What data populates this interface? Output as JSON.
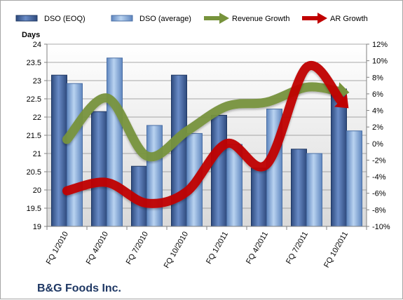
{
  "chart_data": {
    "type": "bar",
    "company": "B&G Foods Inc.",
    "ylabel_left": "Days",
    "categories": [
      "FQ 1/2010",
      "FQ 4/2010",
      "FQ 7/2010",
      "FQ 10/2010",
      "FQ 1/2011",
      "FQ 4/2011",
      "FQ 7/2011",
      "FQ 10/2011"
    ],
    "ylim_left": [
      19,
      24
    ],
    "yticks_left": [
      "19",
      "19.5",
      "20",
      "20.5",
      "21",
      "21.5",
      "22",
      "22.5",
      "23",
      "23.5",
      "24"
    ],
    "ylim_right": [
      -0.1,
      0.12
    ],
    "yticks_right": [
      "-10%",
      "-8%",
      "-6%",
      "-4%",
      "-2%",
      "0%",
      "2%",
      "4%",
      "6%",
      "8%",
      "10%",
      "12%"
    ],
    "legend_position": "top",
    "grid": true,
    "series": [
      {
        "name": "DSO (EOQ)",
        "type": "bar",
        "axis": "left",
        "color": "#4f6fa8",
        "values": [
          23.15,
          22.15,
          20.65,
          23.15,
          22.05,
          20.6,
          21.12,
          22.77
        ]
      },
      {
        "name": "DSO (average)",
        "type": "bar",
        "axis": "left",
        "color": "#8eb4e3",
        "values": [
          22.92,
          23.62,
          21.77,
          21.55,
          21.25,
          22.22,
          21.0,
          21.62
        ]
      },
      {
        "name": "Revenue Growth",
        "type": "line",
        "axis": "right",
        "color": "#77933c",
        "values": [
          0.005,
          0.055,
          -0.015,
          0.015,
          0.045,
          0.05,
          0.068,
          0.062
        ]
      },
      {
        "name": "AR Growth",
        "type": "line",
        "axis": "right",
        "color": "#c00000",
        "values": [
          -0.057,
          -0.047,
          -0.072,
          -0.058,
          0.0,
          -0.025,
          0.092,
          0.045
        ]
      }
    ]
  }
}
